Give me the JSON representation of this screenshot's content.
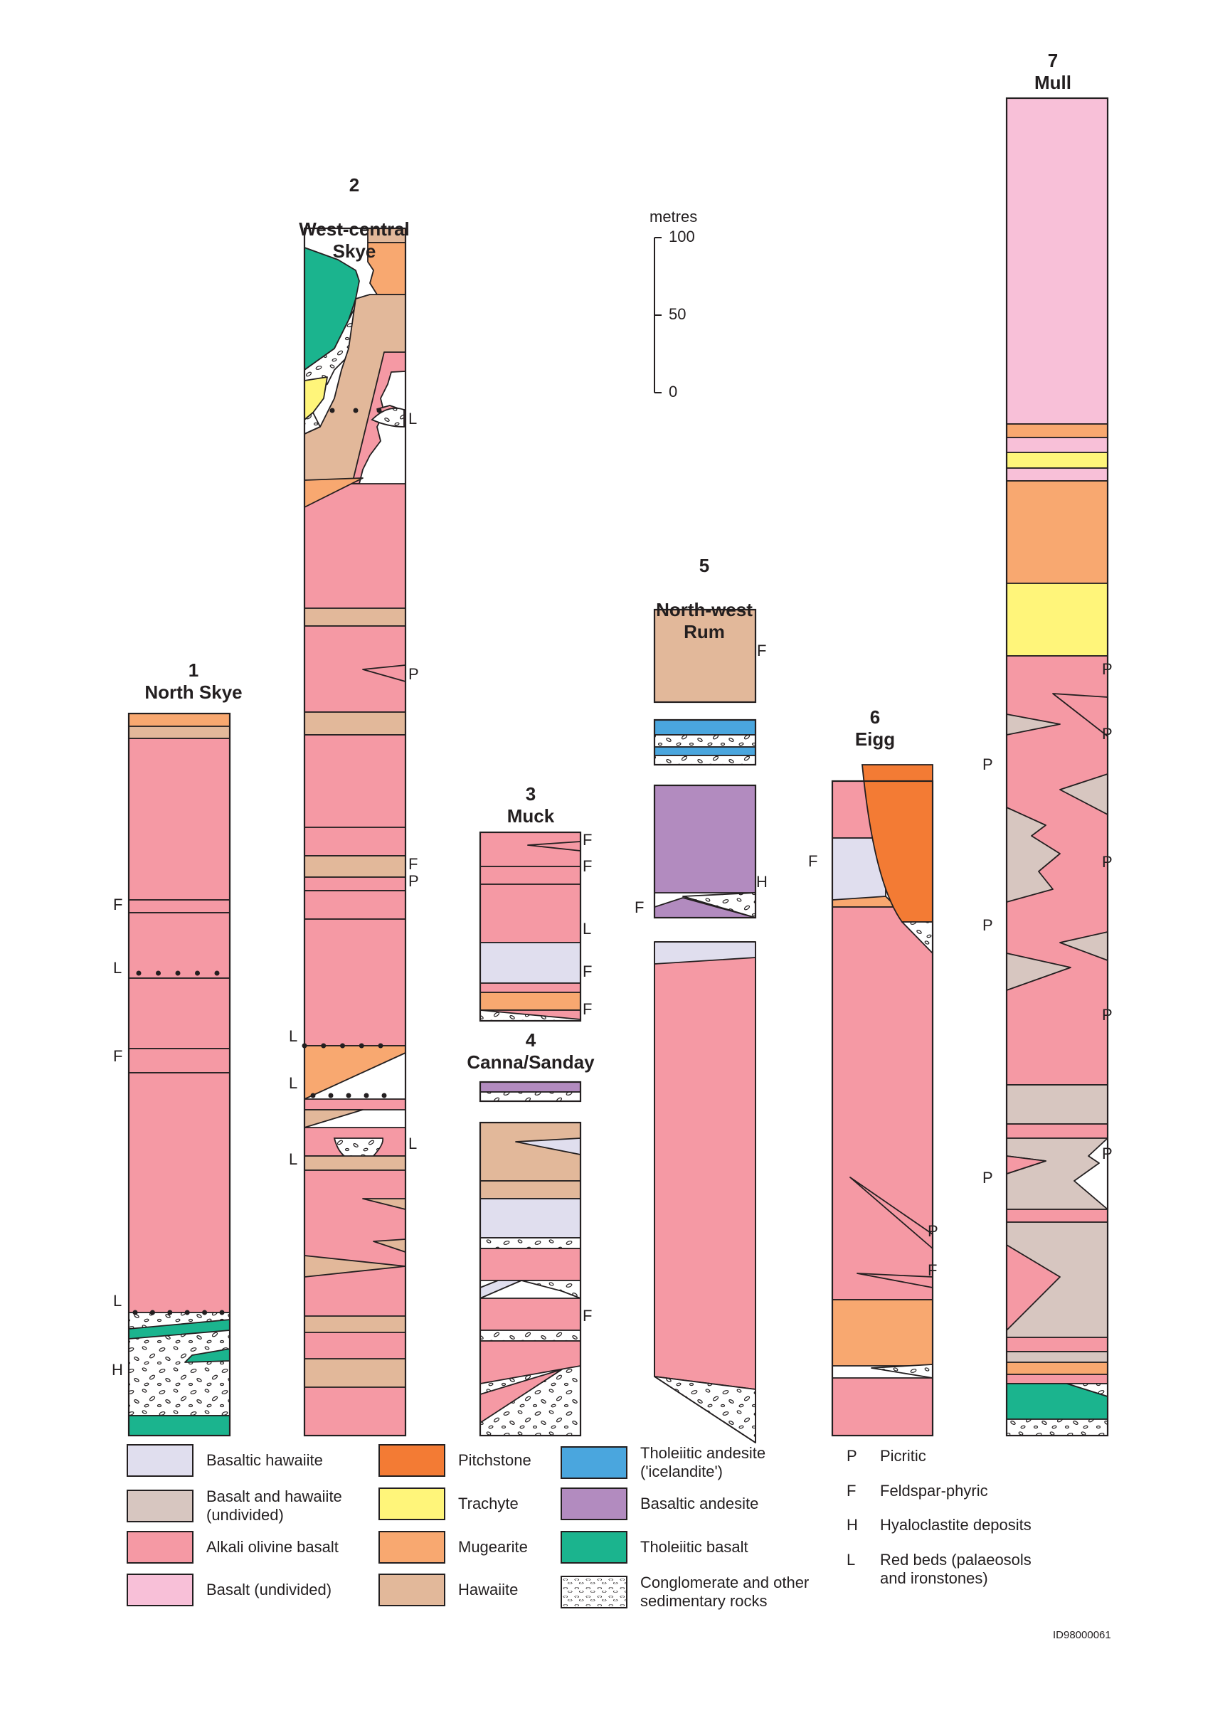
{
  "columns": [
    {
      "id": "1",
      "name": "North Skye"
    },
    {
      "id": "2",
      "name": "West-central\nSkye"
    },
    {
      "id": "3",
      "name": "Muck"
    },
    {
      "id": "4",
      "name": "Canna/Sanday"
    },
    {
      "id": "5",
      "name": "North-west\nRum"
    },
    {
      "id": "6",
      "name": "Eigg"
    },
    {
      "id": "7",
      "name": "Mull"
    }
  ],
  "scale": {
    "unit": "metres",
    "ticks": [
      "100",
      "50",
      "0"
    ]
  },
  "colors": {
    "basaltic_hawaiite": "#e0deee",
    "basalt_hawaiite_undivided": "#d7c6c0",
    "alkali_olivine_basalt": "#f599a4",
    "basalt_undivided": "#f8c0d8",
    "pitchstone": "#f37b34",
    "trachyte": "#fff57a",
    "mugearite": "#f8a870",
    "hawaiite": "#e2b89a",
    "tholeiitic_andesite": "#4aa6de",
    "basaltic_andesite": "#b28bbf",
    "tholeiitic_basalt": "#1bb48e",
    "conglomerate": "#ffffff"
  },
  "legend": [
    {
      "key": "basaltic_hawaiite",
      "label": "Basaltic hawaiite"
    },
    {
      "key": "basalt_hawaiite_undivided",
      "label": "Basalt and hawaiite\n(undivided)"
    },
    {
      "key": "alkali_olivine_basalt",
      "label": "Alkali olivine basalt"
    },
    {
      "key": "basalt_undivided",
      "label": "Basalt (undivided)"
    },
    {
      "key": "pitchstone",
      "label": "Pitchstone"
    },
    {
      "key": "trachyte",
      "label": "Trachyte"
    },
    {
      "key": "mugearite",
      "label": "Mugearite"
    },
    {
      "key": "hawaiite",
      "label": "Hawaiite"
    },
    {
      "key": "tholeiitic_andesite",
      "label": "Tholeiitic andesite\n('icelandite')"
    },
    {
      "key": "basaltic_andesite",
      "label": "Basaltic andesite"
    },
    {
      "key": "tholeiitic_basalt",
      "label": "Tholeiitic basalt"
    },
    {
      "key": "conglomerate",
      "label": "Conglomerate and other\nsedimentary rocks"
    }
  ],
  "key": [
    {
      "code": "P",
      "text": "Picritic"
    },
    {
      "code": "F",
      "text": "Feldspar-phyric"
    },
    {
      "code": "H",
      "text": "Hyaloclastite deposits"
    },
    {
      "code": "L",
      "text": "Red beds (palaeosols\nand ironstones)"
    }
  ],
  "marker_letters": {
    "P": "P",
    "F": "F",
    "H": "H",
    "L": "L"
  },
  "figure_id": "ID98000061"
}
